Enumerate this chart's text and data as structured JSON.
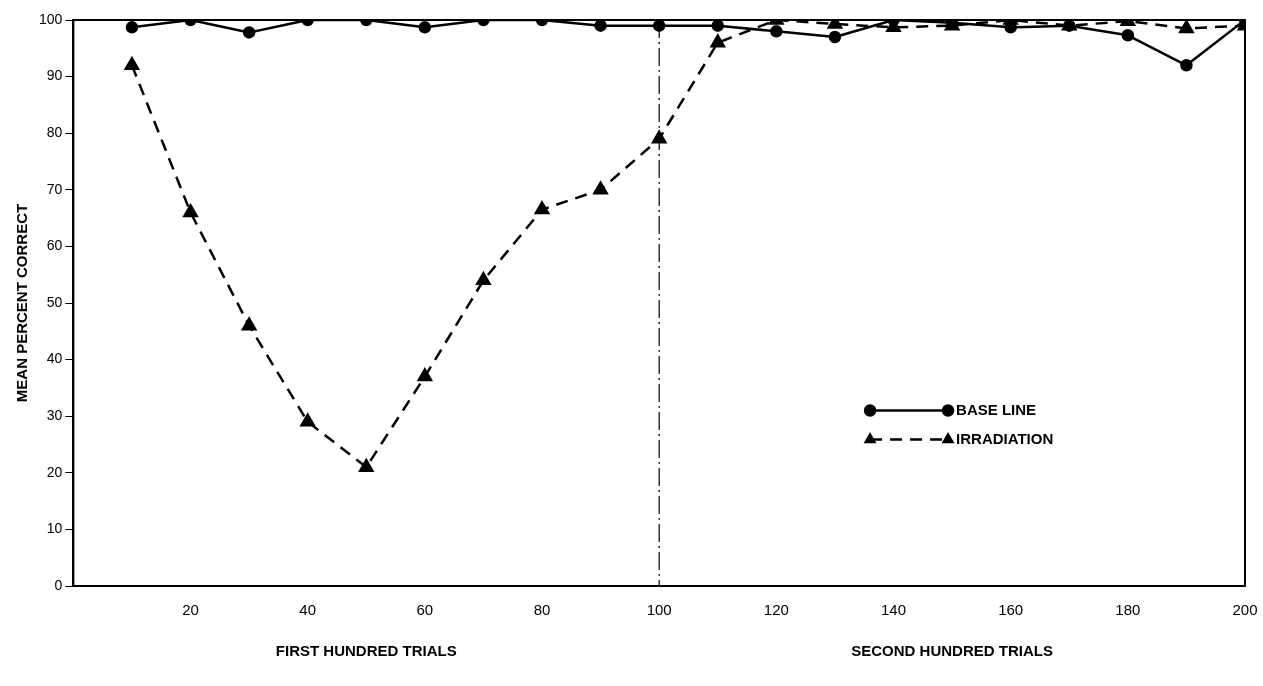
{
  "chart_data": {
    "type": "line",
    "ylabel": "MEAN PERCENT CORRECT",
    "xlabel": "FIRST HUNDRED TRIALS",
    "annotations": [
      "SECOND HUNDRED TRIALS"
    ],
    "x": [
      10,
      20,
      30,
      40,
      50,
      60,
      70,
      80,
      90,
      100,
      110,
      120,
      130,
      140,
      150,
      160,
      170,
      180,
      190,
      200
    ],
    "xlim": [
      0,
      200
    ],
    "xticks": [
      20,
      40,
      60,
      80,
      100,
      120,
      140,
      160,
      180,
      200
    ],
    "ylim": [
      0,
      100
    ],
    "yticks": [
      0,
      10,
      20,
      30,
      40,
      50,
      60,
      70,
      80,
      90,
      100
    ],
    "grid": false,
    "legend": "center right",
    "ref_lines": [
      {
        "axis": "x",
        "value": 100,
        "line_style": "dashed",
        "color": "#000000"
      }
    ],
    "series": [
      {
        "name": "BASE LINE",
        "color": "#000000",
        "marker": "circle",
        "line_style": "solid",
        "values": [
          98.7,
          100,
          97.8,
          100,
          100,
          98.7,
          100,
          100,
          99,
          99,
          99,
          98,
          97,
          100,
          99.5,
          98.7,
          99,
          97.3,
          92,
          100
        ]
      },
      {
        "name": "IRRADIATION",
        "color": "#000000",
        "marker": "triangle",
        "line_style": "dashed",
        "values": [
          92,
          66,
          46,
          29,
          21,
          37,
          54,
          66.5,
          70,
          79,
          96,
          100,
          99.3,
          98.7,
          99,
          100,
          99,
          99.8,
          98.5,
          99
        ]
      }
    ]
  }
}
